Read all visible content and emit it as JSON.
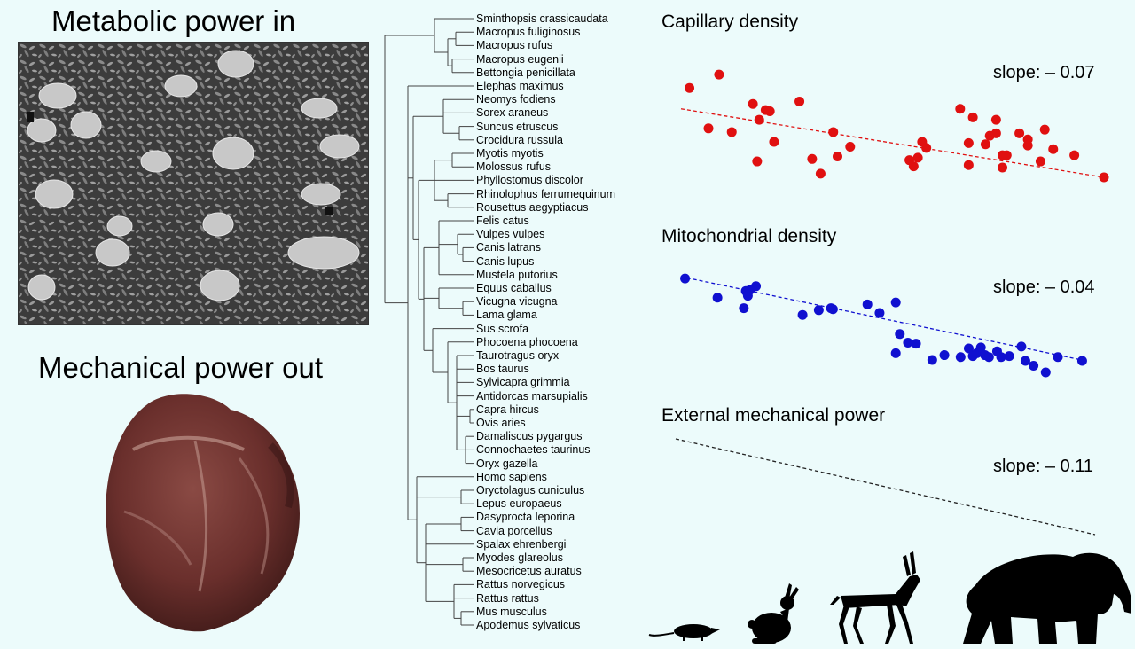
{
  "left_panel": {
    "title_top": "Metabolic power in",
    "title_bottom": "Mechanical power out"
  },
  "tree": {
    "species": [
      "Sminthopsis crassicaudata",
      "Macropus fuliginosus",
      "Macropus rufus",
      "Macropus eugenii",
      "Bettongia penicillata",
      "Elephas maximus",
      "Neomys fodiens",
      "Sorex araneus",
      "Suncus etruscus",
      "Crocidura russula",
      "Myotis myotis",
      "Molossus rufus",
      "Phyllostomus discolor",
      "Rhinolophus ferrumequinum",
      "Rousettus aegyptiacus",
      "Felis catus",
      "Vulpes vulpes",
      "Canis latrans",
      "Canis lupus",
      "Mustela putorius",
      "Equus caballus",
      "Vicugna vicugna",
      "Lama glama",
      "Sus scrofa",
      "Phocoena phocoena",
      "Taurotragus oryx",
      "Bos taurus",
      "Sylvicapra grimmia",
      "Antidorcas marsupialis",
      "Capra hircus",
      "Ovis aries",
      "Damaliscus pygargus",
      "Connochaetes taurinus",
      "Oryx gazella",
      "Homo sapiens",
      "Oryctolagus cuniculus",
      "Lepus europaeus",
      "Dasyprocta leporina",
      "Cavia porcellus",
      "Spalax ehrenbergi",
      "Myodes glareolus",
      "Mesocricetus auratus",
      "Rattus norvegicus",
      "Rattus rattus",
      "Mus musculus",
      "Apodemus sylvaticus"
    ]
  },
  "panels": [
    {
      "title": "Capillary density",
      "slope_label": "slope: – 0.07",
      "color": "#e01010",
      "points": [
        [
          0.02,
          0.73
        ],
        [
          0.09,
          0.84
        ],
        [
          0.065,
          0.4
        ],
        [
          0.12,
          0.37
        ],
        [
          0.17,
          0.6
        ],
        [
          0.185,
          0.47
        ],
        [
          0.2,
          0.55
        ],
        [
          0.21,
          0.54
        ],
        [
          0.18,
          0.13
        ],
        [
          0.22,
          0.29
        ],
        [
          0.28,
          0.62
        ],
        [
          0.31,
          0.15
        ],
        [
          0.33,
          0.03
        ],
        [
          0.36,
          0.37
        ],
        [
          0.37,
          0.17
        ],
        [
          0.4,
          0.25
        ],
        [
          0.54,
          0.14
        ],
        [
          0.55,
          0.09
        ],
        [
          0.56,
          0.16
        ],
        [
          0.57,
          0.29
        ],
        [
          0.58,
          0.24
        ],
        [
          0.66,
          0.56
        ],
        [
          0.69,
          0.49
        ],
        [
          0.68,
          0.1
        ],
        [
          0.68,
          0.28
        ],
        [
          0.72,
          0.27
        ],
        [
          0.73,
          0.34
        ],
        [
          0.745,
          0.36
        ],
        [
          0.745,
          0.47
        ],
        [
          0.76,
          0.08
        ],
        [
          0.76,
          0.18
        ],
        [
          0.77,
          0.18
        ],
        [
          0.8,
          0.36
        ],
        [
          0.82,
          0.26
        ],
        [
          0.82,
          0.31
        ],
        [
          0.85,
          0.13
        ],
        [
          0.86,
          0.39
        ],
        [
          0.88,
          0.23
        ],
        [
          0.93,
          0.18
        ],
        [
          1.0,
          0.0
        ]
      ],
      "fit": [
        [
          0.0,
          0.56
        ],
        [
          1.0,
          0.0
        ]
      ]
    },
    {
      "title": "Mitochondrial density",
      "slope_label": "slope: – 0.04",
      "color": "#1010d0",
      "points": [
        [
          0.01,
          0.98
        ],
        [
          0.09,
          0.78
        ],
        [
          0.16,
          0.85
        ],
        [
          0.165,
          0.8
        ],
        [
          0.185,
          0.9
        ],
        [
          0.155,
          0.67
        ],
        [
          0.17,
          0.86
        ],
        [
          0.3,
          0.6
        ],
        [
          0.34,
          0.65
        ],
        [
          0.37,
          0.67
        ],
        [
          0.375,
          0.66
        ],
        [
          0.46,
          0.71
        ],
        [
          0.49,
          0.62
        ],
        [
          0.53,
          0.73
        ],
        [
          0.53,
          0.2
        ],
        [
          0.54,
          0.4
        ],
        [
          0.56,
          0.31
        ],
        [
          0.58,
          0.3
        ],
        [
          0.62,
          0.13
        ],
        [
          0.65,
          0.18
        ],
        [
          0.69,
          0.16
        ],
        [
          0.71,
          0.25
        ],
        [
          0.72,
          0.17
        ],
        [
          0.73,
          0.2
        ],
        [
          0.74,
          0.26
        ],
        [
          0.75,
          0.18
        ],
        [
          0.76,
          0.16
        ],
        [
          0.78,
          0.22
        ],
        [
          0.79,
          0.16
        ],
        [
          0.81,
          0.17
        ],
        [
          0.84,
          0.27
        ],
        [
          0.85,
          0.12
        ],
        [
          0.87,
          0.07
        ],
        [
          0.9,
          0.0
        ],
        [
          0.93,
          0.16
        ],
        [
          0.99,
          0.12
        ]
      ],
      "fit": [
        [
          0.0,
          1.0
        ],
        [
          1.0,
          0.12
        ]
      ]
    },
    {
      "title": "External mechanical power",
      "slope_label": "slope: – 0.11",
      "color": "#222222",
      "points": [],
      "fit": [
        [
          0.0,
          1.0
        ],
        [
          1.0,
          0.0
        ]
      ]
    }
  ],
  "silhouettes": [
    "shrew-icon",
    "rabbit-icon",
    "antelope-icon",
    "elephant-icon"
  ]
}
